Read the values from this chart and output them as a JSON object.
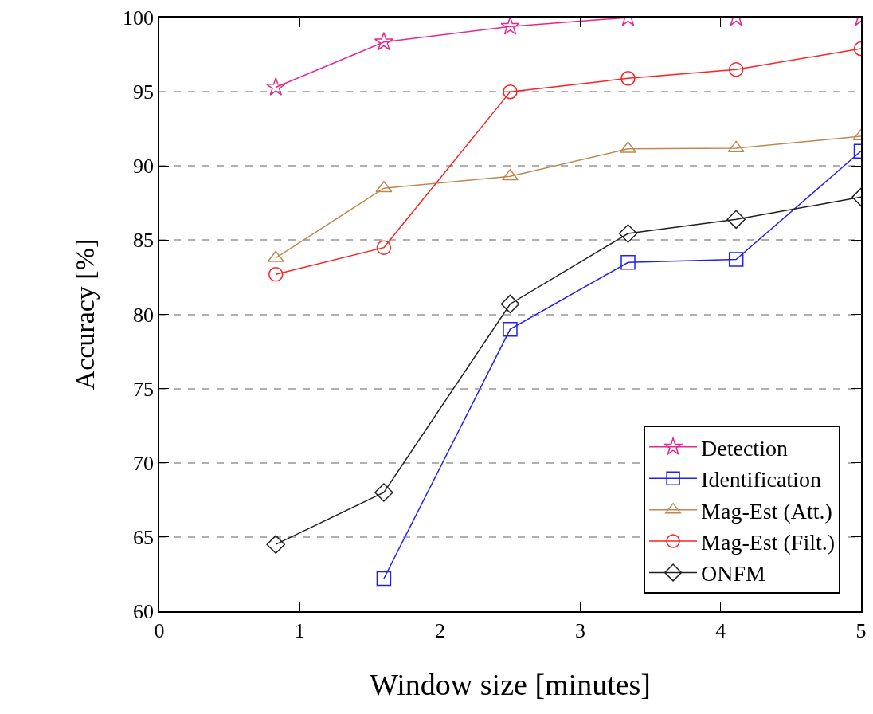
{
  "chart_data": {
    "type": "line",
    "xlabel": "Window size [minutes]",
    "ylabel": "Accuracy [%]",
    "x": [
      0.83,
      1.6,
      2.5,
      3.34,
      4.11,
      5.0
    ],
    "series": [
      {
        "name": "Detection",
        "color": "#e6288c",
        "marker": "star",
        "values": [
          95.3,
          98.35,
          99.4,
          100,
          100,
          100
        ]
      },
      {
        "name": "Identification",
        "color": "#1f1fff",
        "marker": "square",
        "values": [
          null,
          62.2,
          79.0,
          83.5,
          83.7,
          91.0
        ]
      },
      {
        "name": "Mag-Est (Att.)",
        "color": "#c08850",
        "marker": "triangle",
        "values": [
          83.8,
          88.5,
          89.3,
          91.15,
          91.2,
          92.0
        ]
      },
      {
        "name": "Mag-Est (Filt.)",
        "color": "#ff2020",
        "marker": "circle",
        "values": [
          82.7,
          84.5,
          95.0,
          95.9,
          96.5,
          97.9
        ]
      },
      {
        "name": "ONFM",
        "color": "#202020",
        "marker": "diamond",
        "values": [
          64.5,
          68.0,
          80.7,
          85.45,
          86.4,
          87.9
        ]
      }
    ],
    "xlim": [
      0,
      5
    ],
    "xticks": [
      0,
      1,
      2,
      3,
      4,
      5
    ],
    "ylim": [
      60,
      100
    ],
    "yticks": [
      60,
      65,
      70,
      75,
      80,
      85,
      90,
      95,
      100
    ],
    "grid": "y",
    "legend": "bottom right",
    "line_style": "solid"
  }
}
